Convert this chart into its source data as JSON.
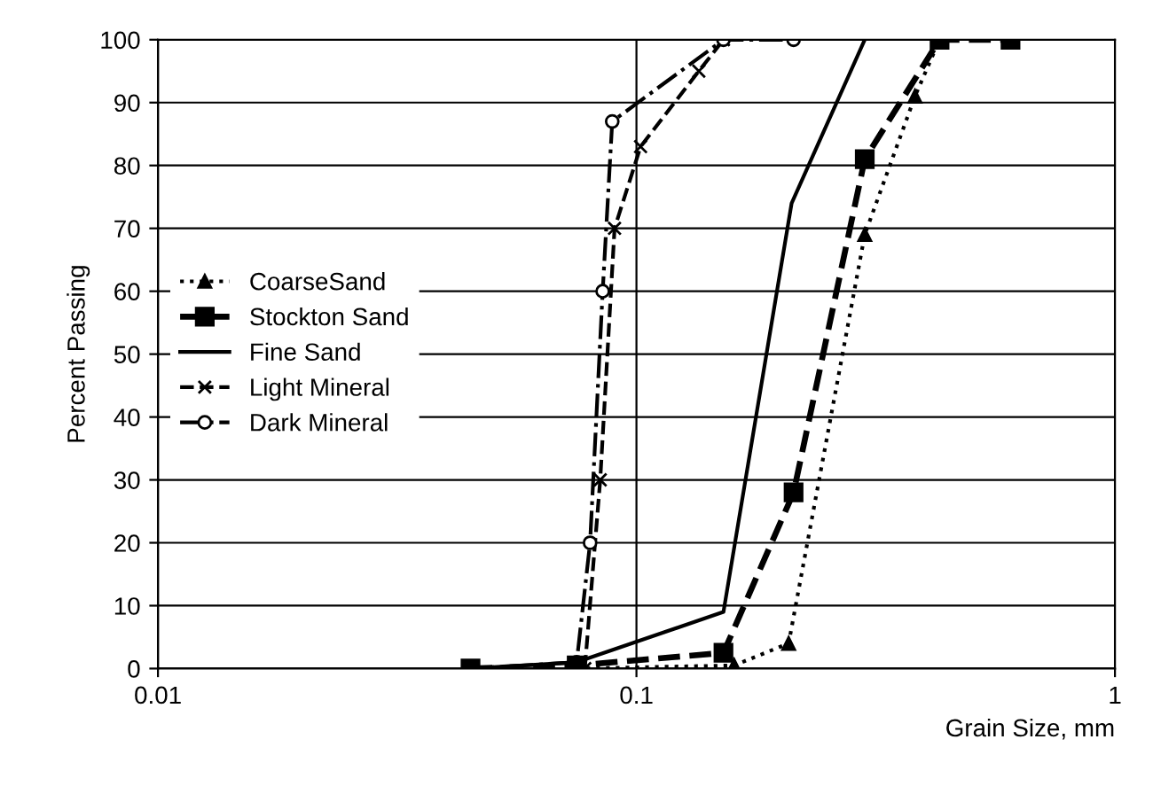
{
  "chart_data": {
    "type": "line",
    "xlabel": "Grain Size, mm",
    "ylabel": "Percent Passing",
    "log": "x",
    "xlim": [
      0.01,
      1
    ],
    "xticks": [
      0.01,
      0.1,
      1
    ],
    "ylim": [
      0,
      100
    ],
    "yticks": [
      0,
      10,
      20,
      30,
      40,
      50,
      60,
      70,
      80,
      90,
      100
    ],
    "grid": true,
    "legend": "left",
    "series": [
      {
        "name": "CoarseSand",
        "color": "#000000",
        "marker": "triangle",
        "line_style": "dotted",
        "x": [
          0.075,
          0.16,
          0.208,
          0.3,
          0.382,
          0.43
        ],
        "values": [
          0,
          0.5,
          4,
          69,
          91,
          100
        ]
      },
      {
        "name": "Stockton Sand",
        "color": "#000000",
        "marker": "square",
        "line_style": "dashed",
        "x": [
          0.045,
          0.075,
          0.152,
          0.213,
          0.3,
          0.43,
          0.605
        ],
        "values": [
          0,
          0.5,
          2.5,
          28,
          81,
          100,
          100
        ]
      },
      {
        "name": "Fine Sand",
        "color": "#000000",
        "marker": "none",
        "line_style": "solid",
        "x": [
          0.045,
          0.075,
          0.152,
          0.211,
          0.3
        ],
        "values": [
          0,
          1,
          9,
          74,
          100
        ]
      },
      {
        "name": "Light Mineral",
        "color": "#000000",
        "marker": "cross",
        "line_style": "dashed",
        "x": [
          0.078,
          0.084,
          0.09,
          0.102,
          0.135,
          0.152
        ],
        "values": [
          0,
          30,
          70,
          83,
          95,
          100
        ]
      },
      {
        "name": "Dark Mineral",
        "color": "#000000",
        "marker": "circle",
        "line_style": "dashdot",
        "x": [
          0.045,
          0.075,
          0.08,
          0.085,
          0.089,
          0.152,
          0.213
        ],
        "values": [
          0,
          1,
          20,
          60,
          87,
          100,
          100
        ]
      }
    ]
  }
}
